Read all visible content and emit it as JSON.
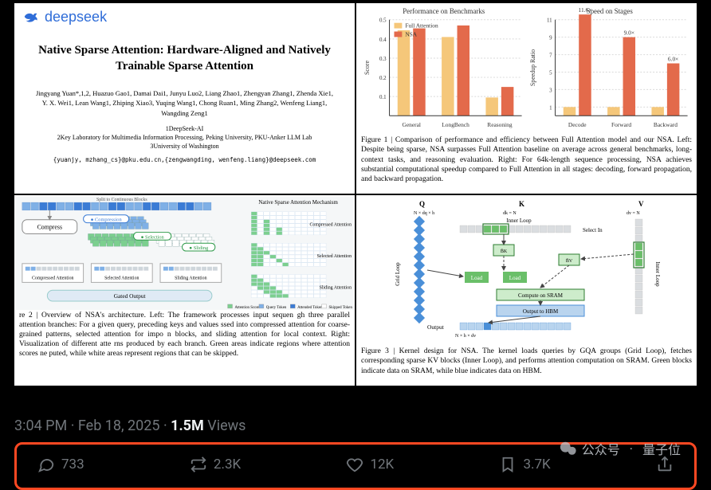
{
  "paper": {
    "brand": "deepseek",
    "title_l1": "Native Sparse Attention: Hardware-Aligned and Natively",
    "title_l2": "Trainable Sparse Attention",
    "authors_l1": "Jingyang Yuan*,1,2, Huazuo Gao1, Damai Dai1, Junyu Luo2, Liang Zhao1, Zhengyan Zhang1, Zhenda Xie1,",
    "authors_l2": "Y. X. Wei1, Lean Wang1, Zhiping Xiao3, Yuqing Wang1, Chong Ruan1, Ming Zhang2, Wenfeng Liang1,",
    "authors_l3": "Wangding Zeng1",
    "affil_1": "1DeepSeek-AI",
    "affil_2": "2Key Laboratory for Multimedia Information Processing, Peking University, PKU-Anker LLM Lab",
    "affil_3": "3University of Washington",
    "emails": "{yuanjy, mzhang_cs}@pku.edu.cn,{zengwangding, wenfeng.liang}@deepseek.com"
  },
  "charts": {
    "colors": {
      "full": "#f5c77a",
      "nsa": "#e36a4b",
      "grid": "#d9d9d9",
      "axis": "#333333",
      "text": "#333333",
      "bg": "#ffffff"
    },
    "fontsize_title": 9,
    "fontsize_tick": 7,
    "left": {
      "title": "Performance on Benchmarks",
      "type": "bar_grouped",
      "ylabel": "Score",
      "ylim": [
        0,
        0.5
      ],
      "yticks": [
        0.1,
        0.2,
        0.3,
        0.4,
        0.5
      ],
      "categories": [
        "General",
        "LongBench",
        "Reasoning"
      ],
      "legend": [
        "Full Attention",
        "NSA"
      ],
      "full": [
        0.445,
        0.41,
        0.095
      ],
      "nsa": [
        0.455,
        0.47,
        0.15
      ]
    },
    "right": {
      "title": "Speed on Stages",
      "type": "bar_grouped_labeled",
      "ylabel": "Speedup Ratio",
      "ylim": [
        0,
        11
      ],
      "yticks": [
        1.0,
        3.0,
        5.0,
        7.0,
        9.0,
        11.0
      ],
      "categories": [
        "Decode",
        "Forward",
        "Backward"
      ],
      "full": [
        1.0,
        1.0,
        1.0
      ],
      "nsa": [
        11.6,
        9.0,
        6.0
      ],
      "nsa_labels": [
        "11.6×",
        "9.0×",
        "6.0×"
      ]
    },
    "caption": "Figure 1 | Comparison of performance and efficiency between Full Attention model and our NSA. Left: Despite being sparse, NSA surpasses Full Attention baseline on average across general benchmarks, long-context tasks, and reasoning evaluation. Right: For 64k-length sequence processing, NSA achieves substantial computational speedup compared to Full Attention in all stages: decoding, forward propagation, and backward propagation."
  },
  "arch": {
    "title_right": "Native Sparse Attention Mechanism",
    "row_labels": [
      "Compressed Attention",
      "Selected Attention",
      "Sliding Attention"
    ],
    "tags": {
      "compression": "Compression",
      "selection": "Selection",
      "sliding": "Sliding",
      "gated": "Gated Output",
      "compress_box": "Compress",
      "split": "Split to Continuous Blocks",
      "compressed_att": "Compressed Attention",
      "selected_att": "Selected Attention",
      "sliding_att": "Sliding Attention"
    },
    "legend": [
      "Attention Score",
      "Query Token",
      "Attended Token",
      "Skipped Token"
    ],
    "colors": {
      "blue": "#7fb0e6",
      "blue_dark": "#3a7bd5",
      "green": "#7ccf8f",
      "green_border": "#2e9a49",
      "gray": "#cfd6db",
      "panel": "#eef2f4"
    },
    "caption": "re 2 | Overview of NSA's architecture. Left: The framework processes input sequen gh three parallel attention branches: For a given query, preceding keys and values ssed into compressed attention for coarse-grained patterns, selected attention for impo n blocks, and sliding attention for local context. Right: Visualization of different atte rns produced by each branch. Green areas indicate regions where attention scores ne puted, while white areas represent regions that can be skipped."
  },
  "kernel": {
    "labels": {
      "Q": "Q",
      "K": "K",
      "V": "V",
      "grid": "Grid Loop",
      "inner": "Inner Loop",
      "inner_right": "Inner Loop",
      "load": "Load",
      "select": "Select In",
      "compute": "Compute on SRAM",
      "out_hbm": "Output to HBM",
      "output": "Output",
      "dims_q": "N × dq × h",
      "dims_k": "dk = N",
      "dims_v": "dv = N",
      "dims_out": "N × h × dv",
      "bk": "B̄K",
      "bv": "B̄V"
    },
    "colors": {
      "blue": "#4a8fd8",
      "blue_light": "#b9d4ee",
      "green": "#6abf69",
      "green_light": "#cdeccb",
      "gray": "#dadde0",
      "border": "#2e7d32",
      "text": "#333",
      "arrow": "#444"
    },
    "caption": "Figure 3 | Kernel design for NSA. The kernel loads queries by GQA groups (Grid Loop), fetches corresponding sparse KV blocks (Inner Loop), and performs attention computation on SRAM. Green blocks indicate data on SRAM, while blue indicates data on HBM."
  },
  "tweet": {
    "time": "3:04 PM",
    "date": "Feb 18, 2025",
    "views_value": "1.5M",
    "views_label": "Views",
    "replies": "733",
    "reposts": "2.3K",
    "likes": "12K",
    "bookmarks": "3.7K"
  },
  "watermark": {
    "a": "公众号",
    "b": "量子位"
  }
}
